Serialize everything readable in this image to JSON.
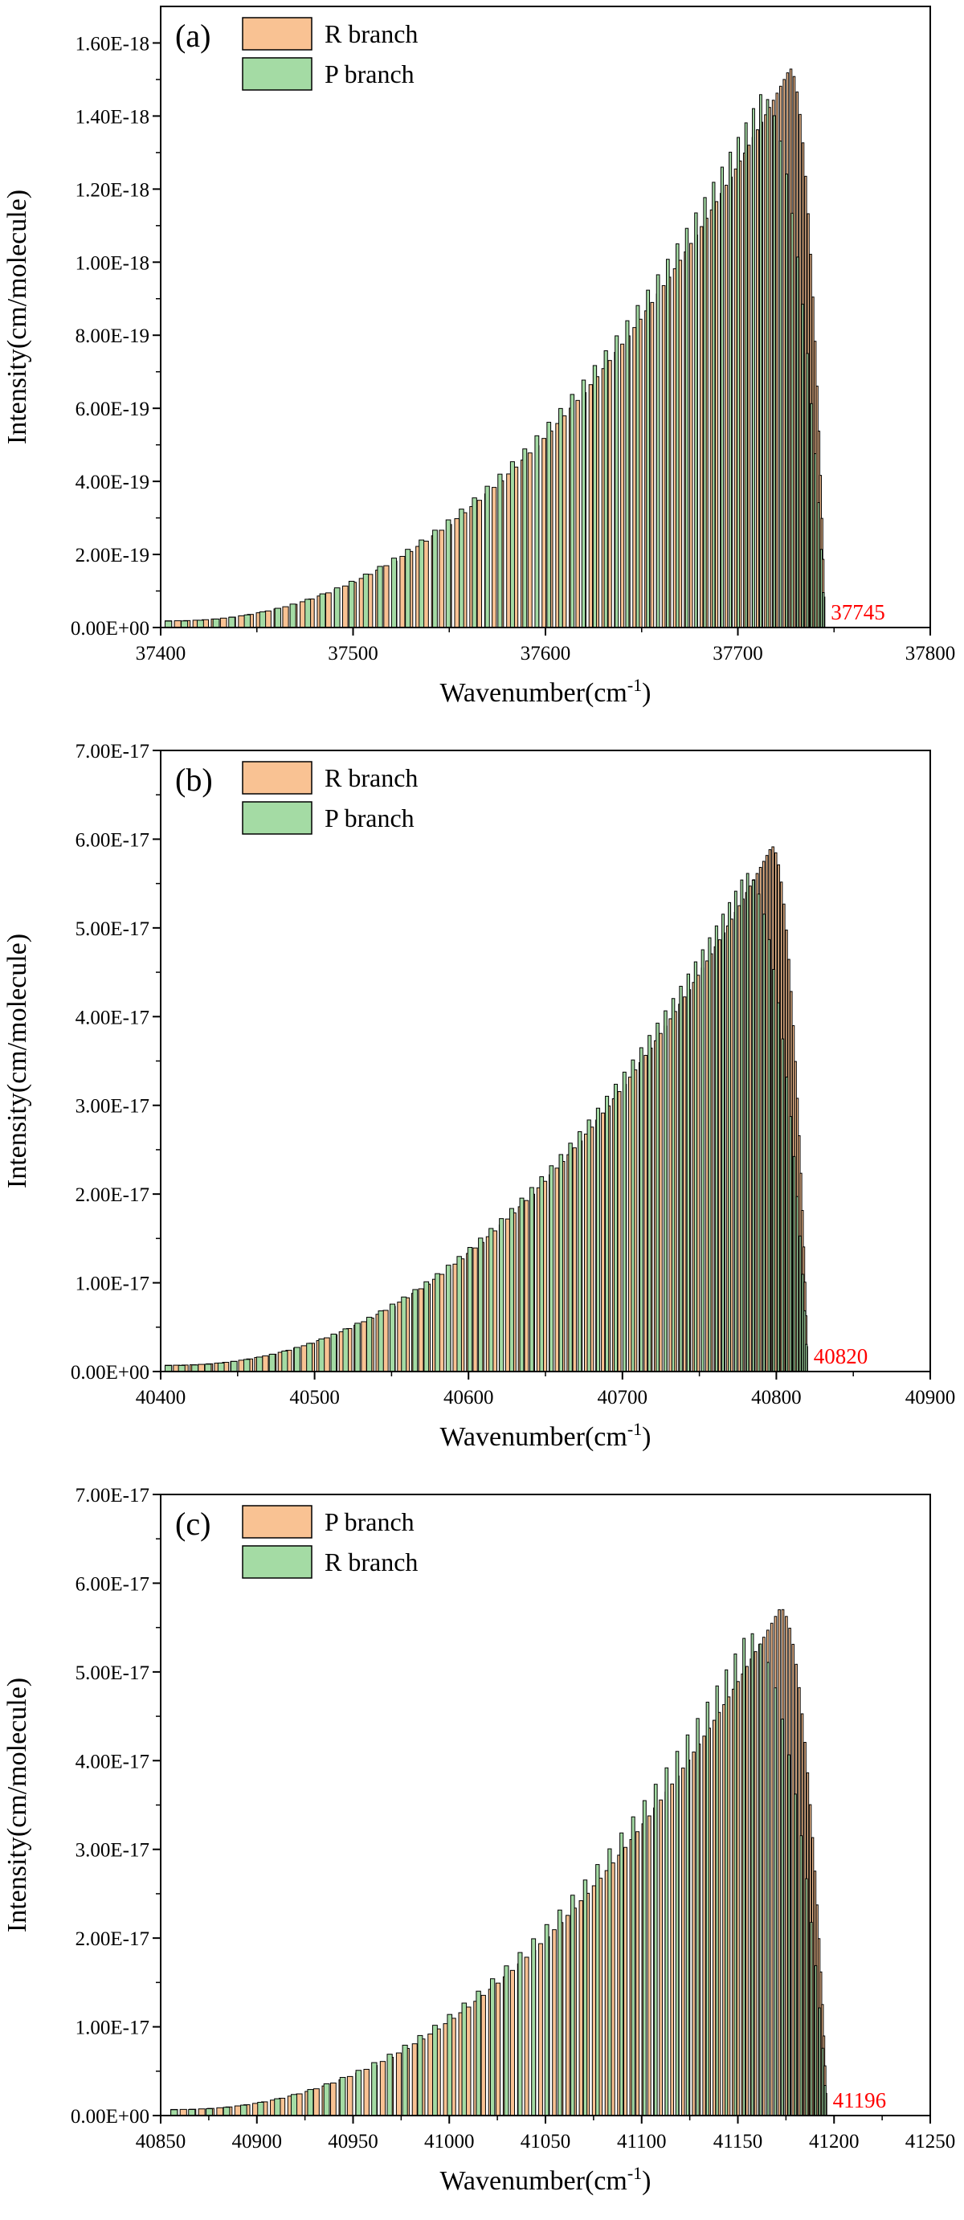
{
  "figure": {
    "panels_note": "three stacked spectral stick plots"
  },
  "colors": {
    "orange": "#f9c293",
    "green": "#a4dba4",
    "outline": "#000000",
    "edge_label": "#ff0000"
  },
  "chart_data": [
    {
      "type": "bar",
      "panel_label": "(a)",
      "xlabel": "Wavenumber(cm",
      "xlabel_sup": "-1",
      "xlabel_close": ")",
      "ylabel": "Intensity(cm/molecule)",
      "xlim": [
        37400,
        37800
      ],
      "ylim": [
        0,
        1.7e-18
      ],
      "xticks": [
        37400,
        37500,
        37600,
        37700,
        37800
      ],
      "xtick_labels": [
        "37400",
        "37500",
        "37600",
        "37700",
        "37800"
      ],
      "yticks": [
        0,
        2e-19,
        4e-19,
        6e-19,
        8e-19,
        1e-18,
        1.2e-18,
        1.4e-18,
        1.6e-18
      ],
      "ytick_labels": [
        "0.00E+00",
        "2.00E-19",
        "4.00E-19",
        "6.00E-19",
        "8.00E-19",
        "1.00E-18",
        "1.20E-18",
        "1.40E-18",
        "1.60E-18"
      ],
      "legend": [
        {
          "label": "R branch",
          "color": "orange"
        },
        {
          "label": "P branch",
          "color": "green"
        }
      ],
      "annotation": {
        "text": "37745",
        "x": 37745
      },
      "series": [
        {
          "name": "R branch",
          "color": "orange",
          "x_start": 37404,
          "x_end": 37745,
          "peak_x": 37727,
          "peak_y": 1.53e-18,
          "count": 110
        },
        {
          "name": "P branch",
          "color": "green",
          "x_start": 37404,
          "x_end": 37745,
          "peak_x": 37712,
          "peak_y": 1.46e-18,
          "count": 64
        }
      ]
    },
    {
      "type": "bar",
      "panel_label": "(b)",
      "xlabel": "Wavenumber(cm",
      "xlabel_sup": "-1",
      "xlabel_close": ")",
      "ylabel": "Intensity(cm/molecule)",
      "xlim": [
        40400,
        40900
      ],
      "ylim": [
        0,
        7e-17
      ],
      "xticks": [
        40400,
        40500,
        40600,
        40700,
        40800,
        40900
      ],
      "xtick_labels": [
        "40400",
        "40500",
        "40600",
        "40700",
        "40800",
        "40900"
      ],
      "yticks": [
        0,
        1e-17,
        2e-17,
        3e-17,
        4e-17,
        5e-17,
        6e-17,
        7e-17
      ],
      "ytick_labels": [
        "0.00E+00",
        "1.00E-17",
        "2.00E-17",
        "3.00E-17",
        "4.00E-17",
        "5.00E-17",
        "6.00E-17",
        "7.00E-17"
      ],
      "legend": [
        {
          "label": "R branch",
          "color": "orange"
        },
        {
          "label": "P branch",
          "color": "green"
        }
      ],
      "annotation": {
        "text": "40820",
        "x": 40820
      },
      "series": [
        {
          "name": "R branch",
          "color": "orange",
          "x_start": 40405,
          "x_end": 40820,
          "peak_x": 40797,
          "peak_y": 5.92e-17,
          "count": 120
        },
        {
          "name": "P branch",
          "color": "green",
          "x_start": 40405,
          "x_end": 40820,
          "peak_x": 40780,
          "peak_y": 5.62e-17,
          "count": 75
        }
      ]
    },
    {
      "type": "bar",
      "panel_label": "(c)",
      "xlabel": "Wavenumber(cm",
      "xlabel_sup": "-1",
      "xlabel_close": ")",
      "ylabel": "Intensity(cm/molecule)",
      "xlim": [
        40850,
        41250
      ],
      "ylim": [
        0,
        7e-17
      ],
      "xticks": [
        40850,
        40900,
        40950,
        41000,
        41050,
        41100,
        41150,
        41200,
        41250
      ],
      "xtick_labels": [
        "40850",
        "40900",
        "40950",
        "41000",
        "41050",
        "41100",
        "41150",
        "41200",
        "41250"
      ],
      "yticks": [
        0,
        1e-17,
        2e-17,
        3e-17,
        4e-17,
        5e-17,
        6e-17,
        7e-17
      ],
      "ytick_labels": [
        "0.00E+00",
        "1.00E-17",
        "2.00E-17",
        "3.00E-17",
        "4.00E-17",
        "5.00E-17",
        "6.00E-17",
        "7.00E-17"
      ],
      "legend": [
        {
          "label": "P branch",
          "color": "orange"
        },
        {
          "label": "R branch",
          "color": "green"
        }
      ],
      "annotation": {
        "text": "41196",
        "x": 41196
      },
      "series": [
        {
          "name": "P branch",
          "color": "orange",
          "x_start": 40857,
          "x_end": 41196,
          "peak_x": 41172,
          "peak_y": 5.72e-17,
          "count": 110
        },
        {
          "name": "R branch",
          "color": "green",
          "x_start": 40857,
          "x_end": 41196,
          "peak_x": 41155,
          "peak_y": 5.45e-17,
          "count": 58
        }
      ]
    }
  ]
}
